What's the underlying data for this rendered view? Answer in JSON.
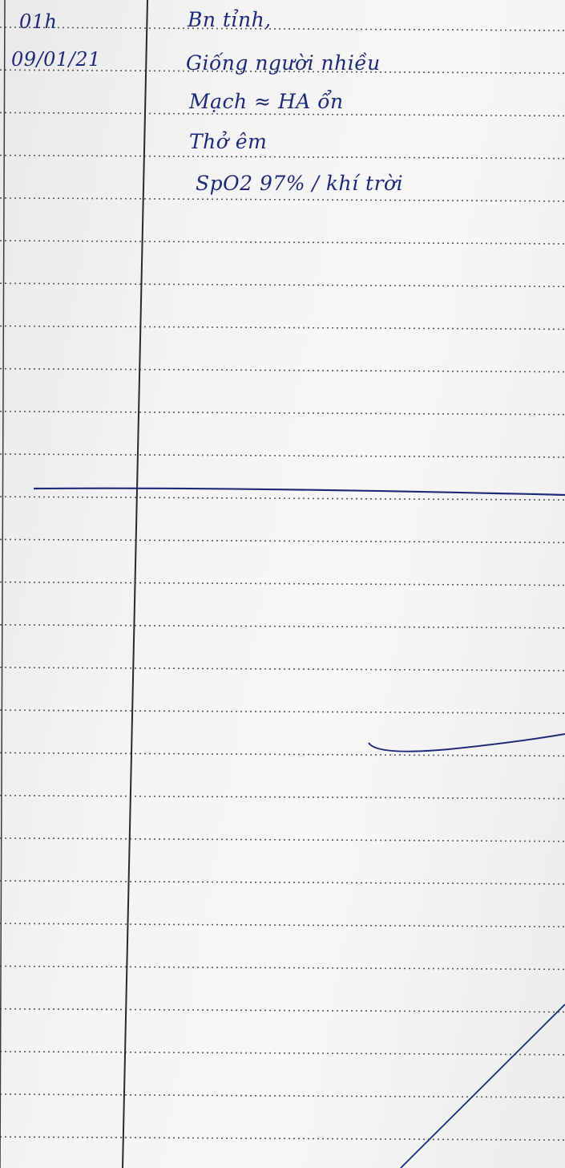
{
  "entry": {
    "time": "01h",
    "date": "09/01/21",
    "lines": [
      "Bn tỉnh,",
      "Giống người nhiều",
      "Mạch ≈ HA ổn",
      "Thở êm",
      "SpO2 97% / khí trời"
    ]
  },
  "colors": {
    "paper": "#f3f3f3",
    "ink": "#1d2a78",
    "rule": "#5a5a5a"
  }
}
